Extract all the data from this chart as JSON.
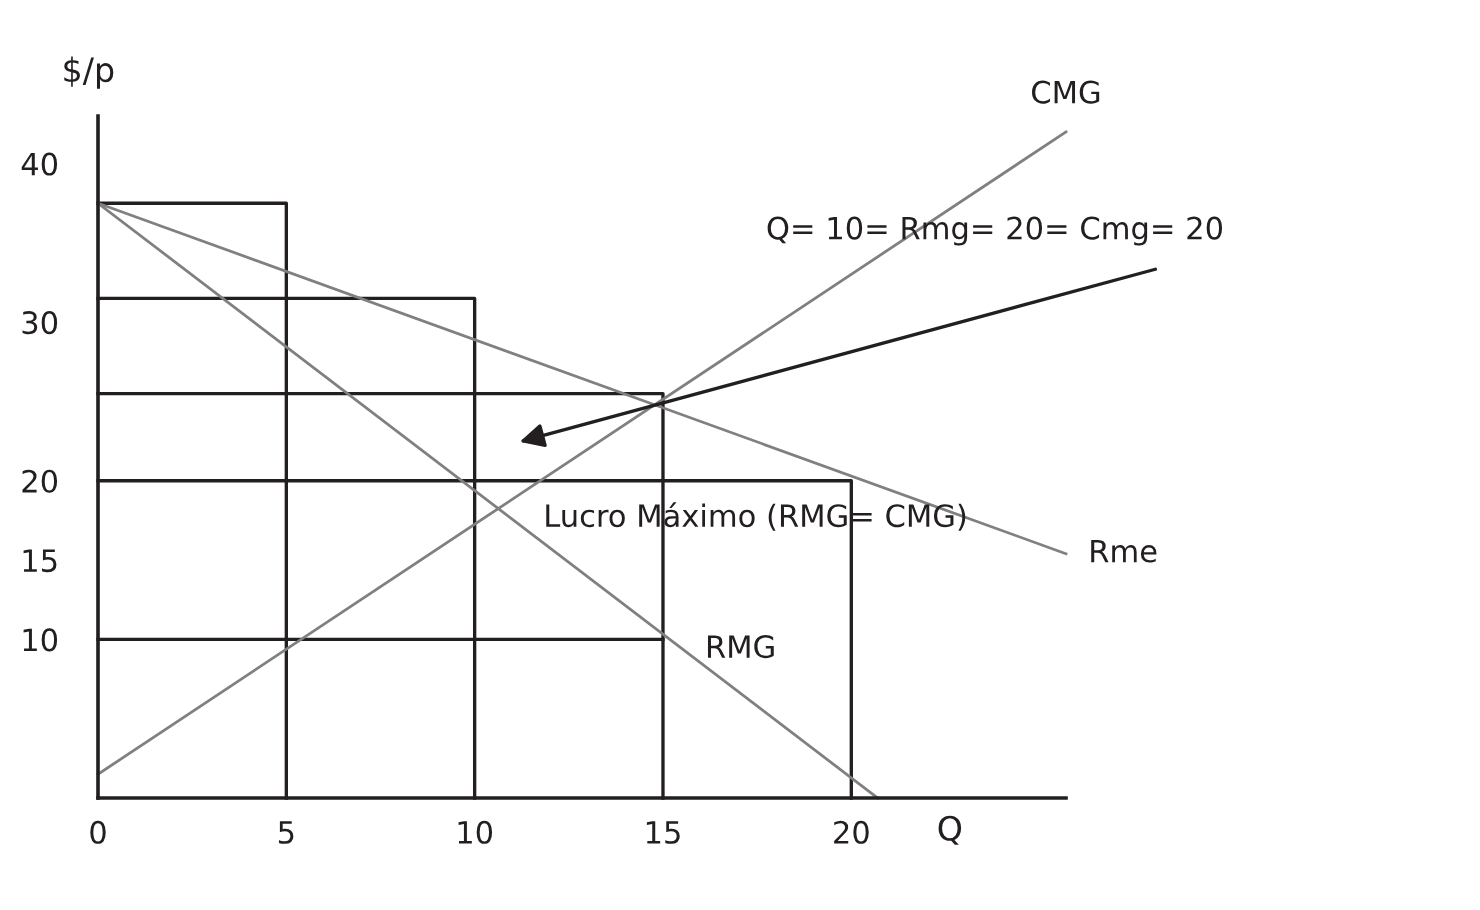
{
  "chart_data": {
    "type": "line",
    "xlabel": "Q",
    "ylabel": "$/p",
    "xlim": [
      0,
      25.7
    ],
    "ylim": [
      0,
      43
    ],
    "xticks": [
      0,
      5,
      10,
      15,
      20
    ],
    "yticks": [
      10,
      15,
      20,
      30,
      40
    ],
    "grid": false,
    "legend": false,
    "marker": "none",
    "line_style": "solid",
    "series": [
      {
        "color": "#231f20",
        "x": [
          0,
          5,
          5
        ],
        "values": [
          37.5,
          37.5,
          0
        ]
      },
      {
        "color": "#231f20",
        "x": [
          0,
          10,
          10
        ],
        "values": [
          31.5,
          31.5,
          0
        ]
      },
      {
        "color": "#231f20",
        "x": [
          0,
          15,
          15
        ],
        "values": [
          25.5,
          25.5,
          0
        ]
      },
      {
        "color": "#231f20",
        "x": [
          0,
          20,
          20
        ],
        "values": [
          20,
          20,
          0
        ]
      },
      {
        "color": "#231f20",
        "x": [
          0,
          15
        ],
        "values": [
          10,
          10
        ]
      },
      {
        "name": "CMG",
        "color": "#808080",
        "x": [
          0,
          25.7
        ],
        "values": [
          1.5,
          42
        ]
      },
      {
        "name": "RMG",
        "color": "#808080",
        "x": [
          0,
          20.7
        ],
        "values": [
          37.5,
          0
        ]
      },
      {
        "name": "Rme",
        "color": "#808080",
        "x": [
          0,
          25.7
        ],
        "values": [
          37.5,
          15.4
        ]
      }
    ],
    "annotations": [
      "Q= 10= Rmg= 20= Cmg= 20",
      "Lucro Máximo (RMG= CMG)"
    ]
  }
}
